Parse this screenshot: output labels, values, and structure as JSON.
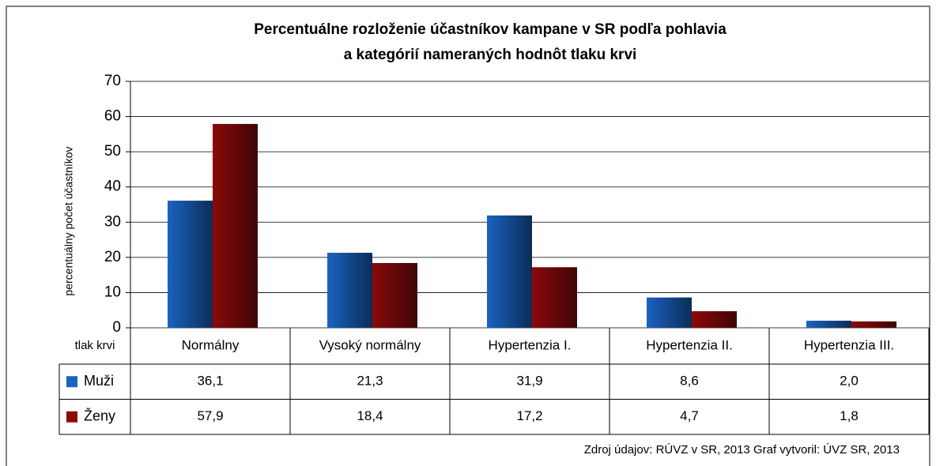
{
  "chart_data": {
    "type": "bar",
    "title": "Percentuálne rozloženie účastníkov kampane v SR  podľa pohlavia",
    "subtitle": "a kategórií nameraných hodnôt tlaku krvi",
    "y_label": "percentuálny počet účastníkov",
    "x_label": "tlak krvi",
    "categories": [
      "Normálny",
      "Vysoký normálny",
      "Hypertenzia I.",
      "Hypertenzia II.",
      "Hypertenzia III."
    ],
    "series": [
      {
        "name": "Muži",
        "color": "#1a62c0",
        "values": [
          36.1,
          21.3,
          31.9,
          8.6,
          2.0
        ],
        "value_labels": [
          "36,1",
          "21,3",
          "31,9",
          "8,6",
          "2,0"
        ]
      },
      {
        "name": "Ženy",
        "color": "#8a0a0a",
        "values": [
          57.9,
          18.4,
          17.2,
          4.7,
          1.8
        ],
        "value_labels": [
          "57,9",
          "18,4",
          "17,2",
          "4,7",
          "1,8"
        ]
      }
    ],
    "ylim": [
      0,
      70
    ],
    "yticks": [
      0,
      10,
      20,
      30,
      40,
      50,
      60,
      70
    ],
    "grid": true,
    "source": "Zdroj  údajov: RÚVZ v SR, 2013   Graf vytvoril: ÚVZ SR, 2013"
  }
}
